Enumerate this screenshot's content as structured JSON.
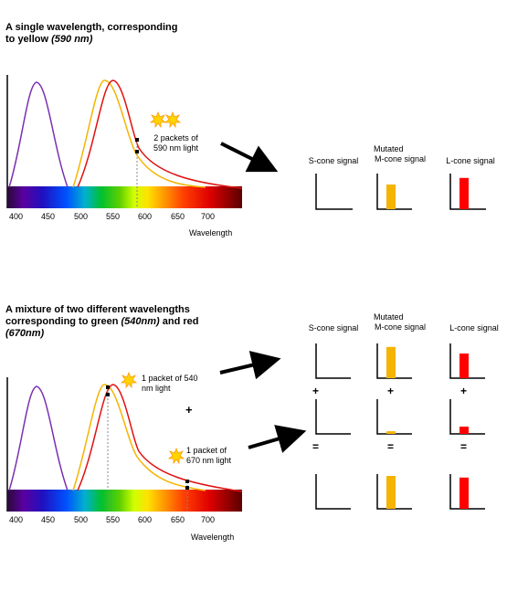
{
  "panel1": {
    "heading_line1": "A single wavelength, corresponding",
    "heading_line2": "to yellow ",
    "heading_italic": "(590 nm)",
    "packet_label_line1": "2 packets of",
    "packet_label_line2": "590 nm light",
    "axis_ticks": [
      "400",
      "450",
      "500",
      "550",
      "600",
      "650",
      "700"
    ],
    "axis_label": "Wavelength",
    "signals": {
      "s_cone_label": "S-cone signal",
      "m_cone_label_line1": "Mutated",
      "m_cone_label_line2": "M-cone signal",
      "l_cone_label": "L-cone signal",
      "levels": {
        "s": 0,
        "m": 0.75,
        "l": 0.95
      }
    }
  },
  "panel2": {
    "heading_line1": "A mixture of two different wavelengths",
    "heading_line2a": "corresponding to green ",
    "heading_italic_a": "(540nm)",
    "heading_line2b": " and red",
    "heading_italic_b": "(670nm)",
    "packet1_line1": "1 packet of 540",
    "packet1_line2": "nm light",
    "plus": "+",
    "packet2_line1": "1 packet of",
    "packet2_line2": "670 nm light",
    "axis_ticks": [
      "400",
      "450",
      "500",
      "550",
      "600",
      "650",
      "700"
    ],
    "axis_label": "Wavelength",
    "signals": {
      "s_cone_label": "S-cone signal",
      "m_cone_label_line1": "Mutated",
      "m_cone_label_line2": "M-cone signal",
      "l_cone_label": "L-cone signal",
      "plus": "+",
      "equals": "=",
      "rows": [
        {
          "s": 0,
          "m": 0.95,
          "l": 0.75
        },
        {
          "s": 0,
          "m": 0.08,
          "l": 0.22
        },
        {
          "s": 0,
          "m": 1.0,
          "l": 0.95
        }
      ]
    }
  },
  "colors": {
    "s_curve": "#7b2fb0",
    "m_curve": "#f5b400",
    "l_curve": "#e01010",
    "m_bar": "#f5b400",
    "l_bar": "#ff0000",
    "sun": "#ffd400",
    "sun_outline": "#ff9a00"
  }
}
